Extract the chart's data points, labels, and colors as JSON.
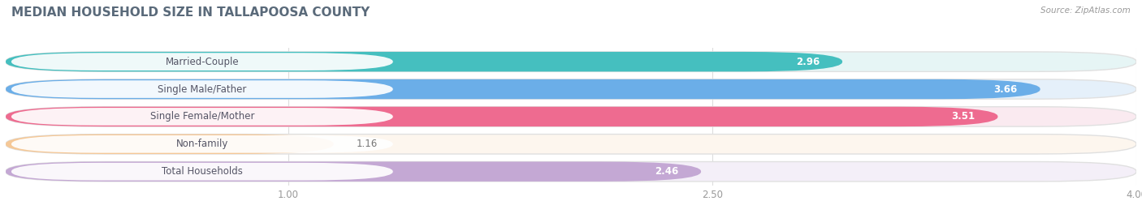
{
  "title": "MEDIAN HOUSEHOLD SIZE IN TALLAPOOSA COUNTY",
  "source": "Source: ZipAtlas.com",
  "categories": [
    "Married-Couple",
    "Single Male/Father",
    "Single Female/Mother",
    "Non-family",
    "Total Households"
  ],
  "values": [
    2.96,
    3.66,
    3.51,
    1.16,
    2.46
  ],
  "bar_colors": [
    "#45BFBF",
    "#6BAEE8",
    "#EE6B90",
    "#F5C897",
    "#C4A8D4"
  ],
  "bar_bg_colors": [
    "#E6F5F5",
    "#E5F0FA",
    "#FAEAF0",
    "#FDF6EE",
    "#F4EFF8"
  ],
  "label_bg_color": "#FFFFFF",
  "xlim": [
    0.0,
    4.0
  ],
  "xticks": [
    1.0,
    2.5,
    4.0
  ],
  "label_fontsize": 8.5,
  "value_fontsize": 8.5,
  "title_fontsize": 11,
  "title_color": "#5a6a7a",
  "source_color": "#999999",
  "value_color": "#777777",
  "label_text_color": "#555566",
  "background_color": "#ffffff",
  "grid_color": "#dddddd"
}
